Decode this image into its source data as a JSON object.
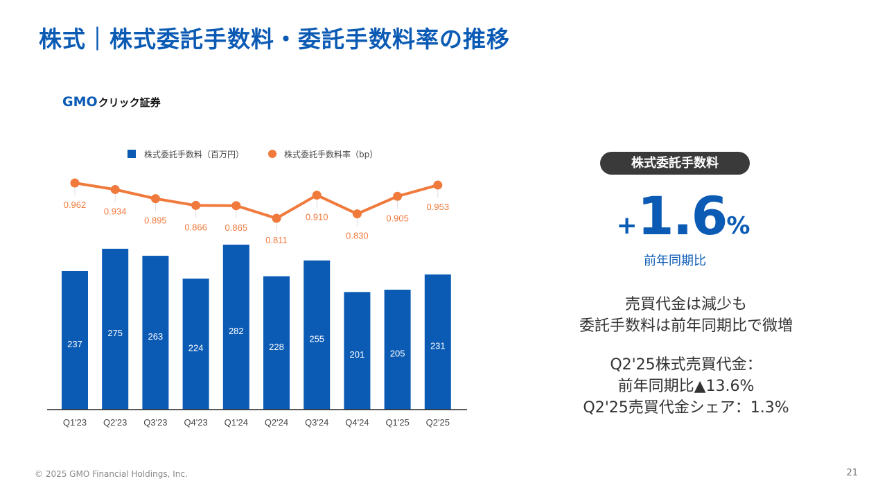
{
  "title": "株式｜株式委託手数料・委託手数料率の推移",
  "logo": {
    "gmo": "GMO",
    "rest": "クリック証券"
  },
  "chart_data": {
    "type": "bar+line",
    "categories": [
      "Q1'23",
      "Q2'23",
      "Q3'23",
      "Q4'23",
      "Q1'24",
      "Q2'24",
      "Q3'24",
      "Q4'24",
      "Q1'25",
      "Q2'25"
    ],
    "series": [
      {
        "name": "株式委託手数料（百万円）",
        "type": "bar",
        "color": "#0b5bb5",
        "values": [
          237,
          275,
          263,
          224,
          282,
          228,
          255,
          201,
          205,
          231
        ],
        "labels": [
          "237",
          "275",
          "263",
          "224",
          "282",
          "228",
          "255",
          "201",
          "205",
          "231"
        ]
      },
      {
        "name": "株式委託手数料率（bp）",
        "type": "line",
        "color": "#f07a3c",
        "values": [
          0.962,
          0.934,
          0.895,
          0.866,
          0.865,
          0.811,
          0.91,
          0.83,
          0.905,
          0.953
        ],
        "labels": [
          "0.962",
          "0.934",
          "0.895",
          "0.866",
          "0.865",
          "0.811",
          "0.910",
          "0.830",
          "0.905",
          "0.953"
        ]
      }
    ],
    "legend_position": "top",
    "grid": false
  },
  "kpi": {
    "badge": "株式委託手数料",
    "sign": "+",
    "number": "1.6",
    "unit": "%",
    "label": "前年同期比"
  },
  "description": {
    "line1": "売買代金は減少も",
    "line2": "委託手数料は前年同期比で微増",
    "line3": "Q2'25株式売買代金：",
    "line4": "前年同期比▲13.6%",
    "line5": "Q2'25売買代金シェア：1.3%"
  },
  "footer": "© 2025 GMO Financial Holdings, Inc.",
  "page_number": "21"
}
